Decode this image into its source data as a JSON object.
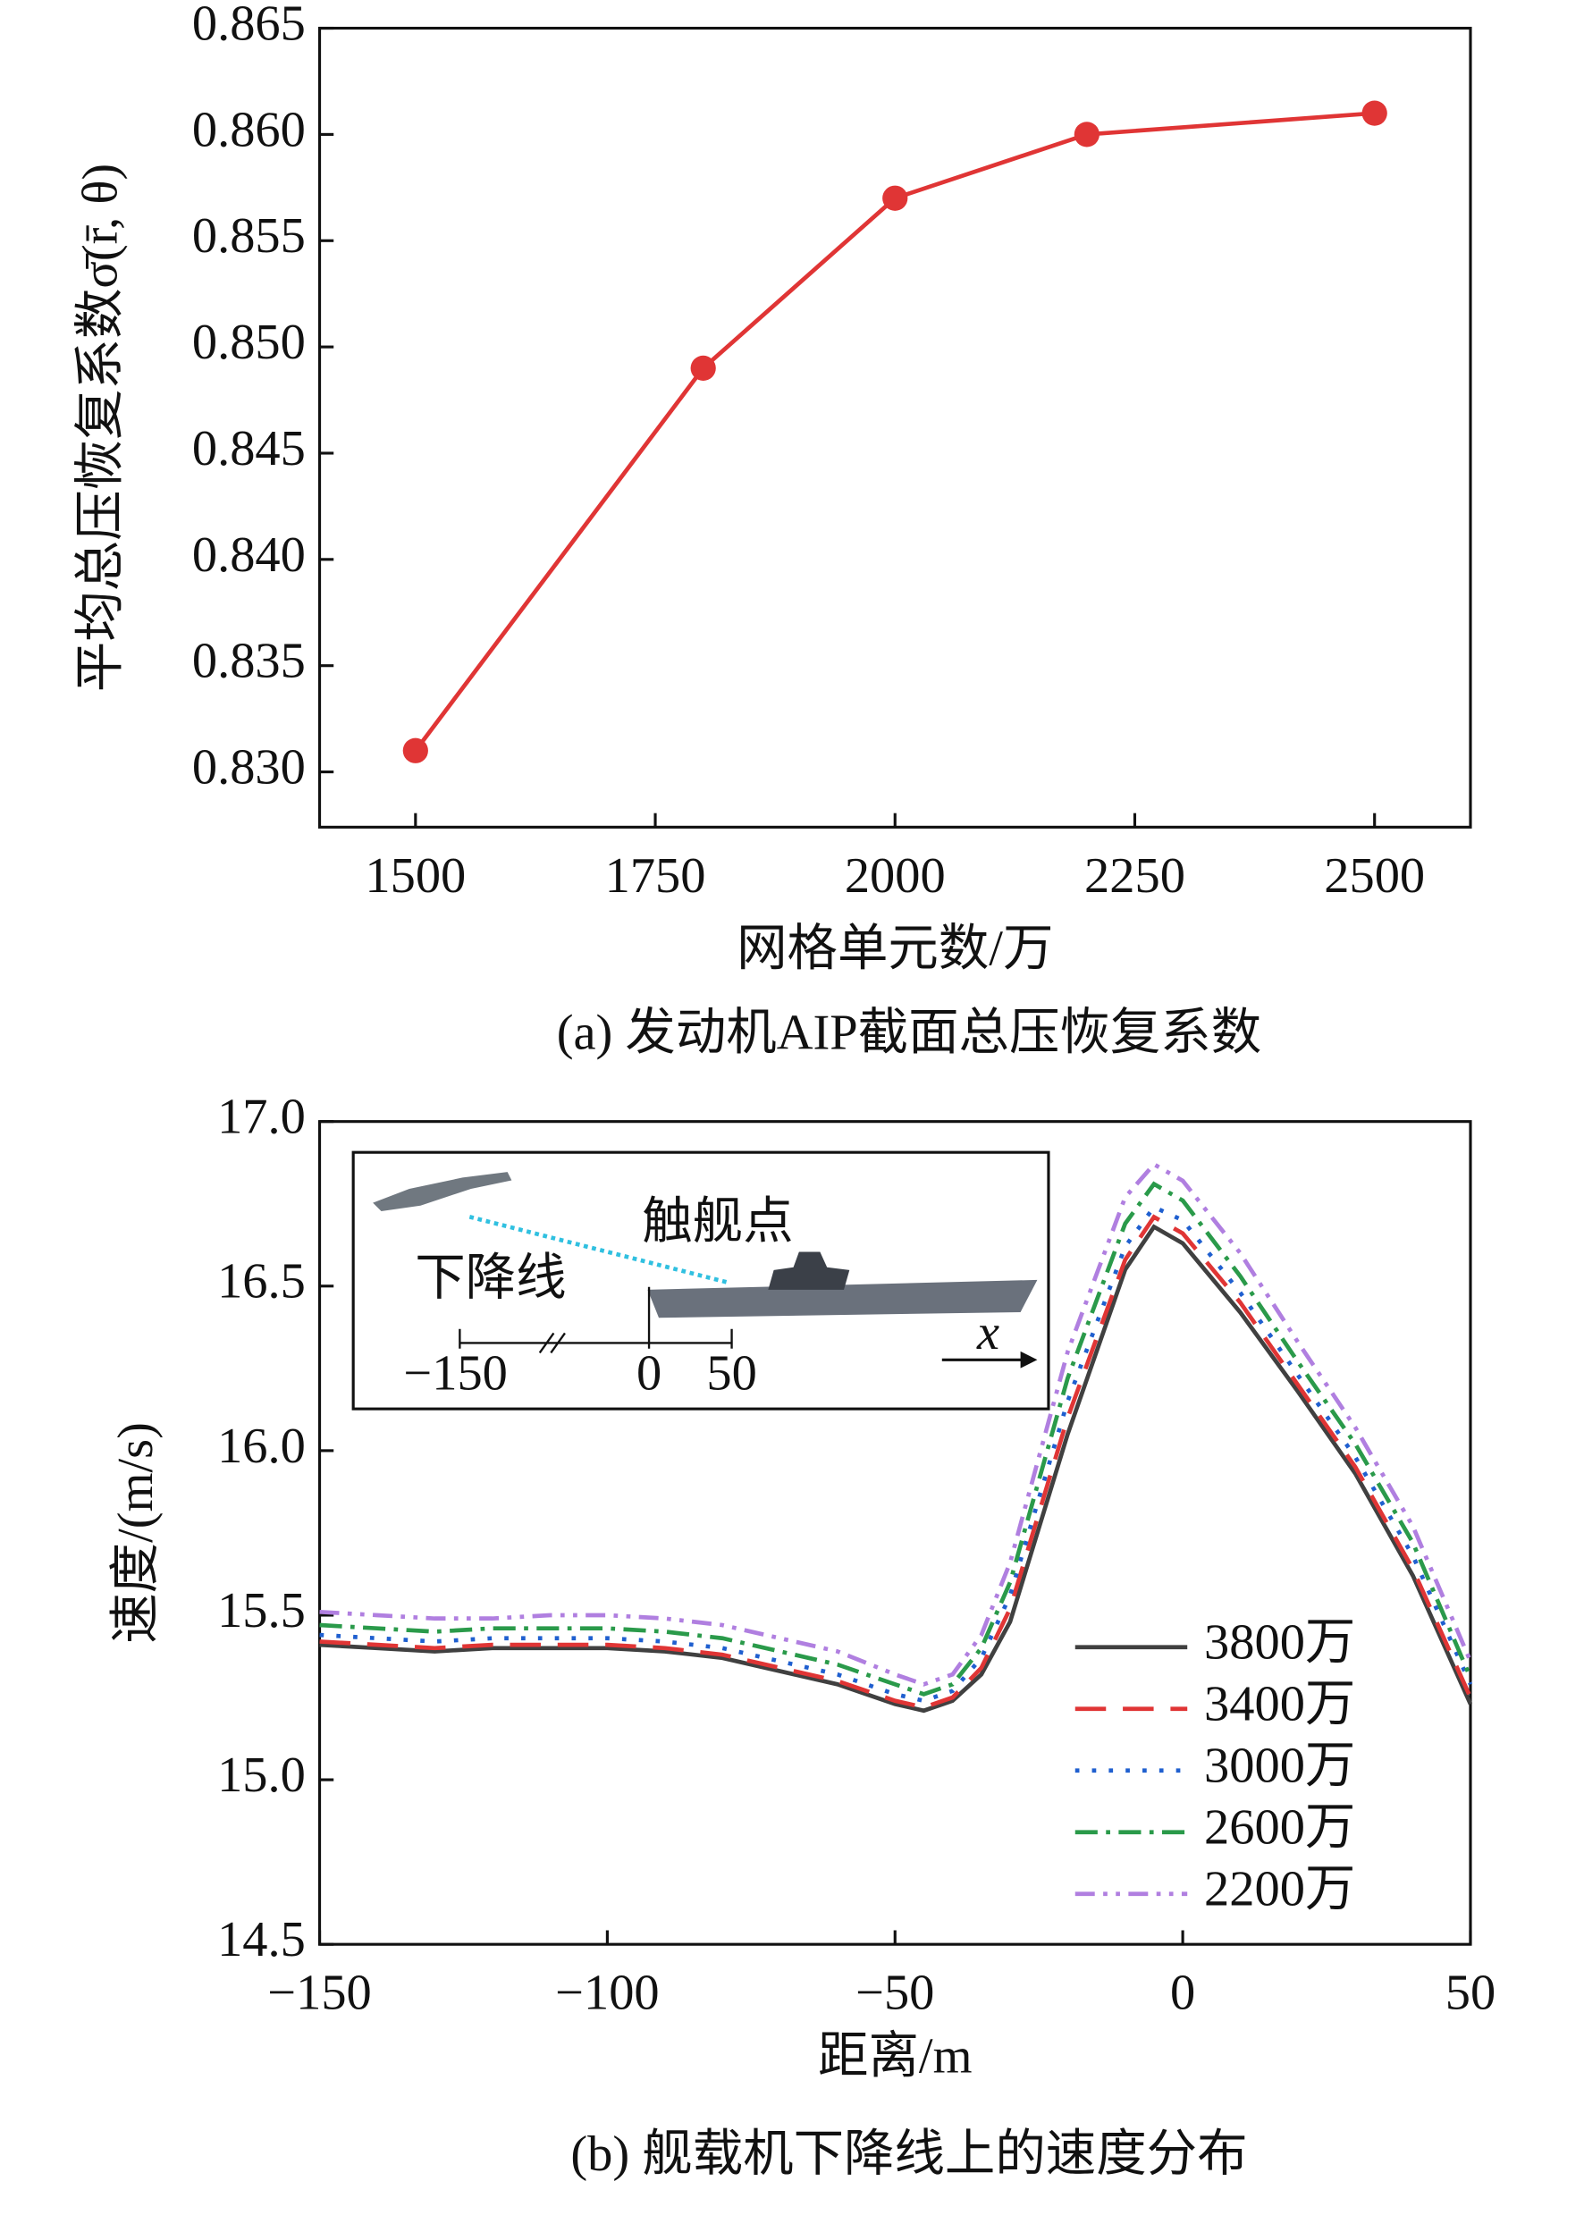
{
  "chart_data": [
    {
      "type": "line",
      "x": [
        1500,
        1800,
        2000,
        2200,
        2500
      ],
      "values": [
        0.831,
        0.849,
        0.857,
        0.86,
        0.861
      ],
      "color": "#e03535",
      "markers": true,
      "xlim": [
        1400,
        2600
      ],
      "xticks": [
        1500,
        1750,
        2000,
        2250,
        2500
      ],
      "ylim": [
        0.8274,
        0.865
      ],
      "yticks": [
        {
          "value": 0.83,
          "label": "0.830"
        },
        0.835,
        {
          "value": 0.84,
          "label": "0.840"
        },
        0.845,
        {
          "value": 0.85,
          "label": "0.850"
        },
        0.855,
        {
          "value": 0.86,
          "label": "0.860"
        },
        0.865
      ],
      "x_label": "网格单元数/万",
      "y_label": "平均总压恢复系数σ̄(r̄, θ)",
      "caption": "(a) 发动机AIP截面总压恢复系数"
    },
    {
      "type": "line",
      "x": [
        -150,
        -140,
        -130,
        -120,
        -110,
        -100,
        -90,
        -80,
        -70,
        -60,
        -50,
        -45,
        -40,
        -35,
        -30,
        -20,
        -10,
        -5,
        0,
        10,
        20,
        30,
        40,
        50
      ],
      "series": [
        {
          "name": "3800万",
          "color": "#404040",
          "dash": "solid",
          "values": [
            15.41,
            15.4,
            15.39,
            15.4,
            15.4,
            15.4,
            15.39,
            15.37,
            15.33,
            15.29,
            15.23,
            15.21,
            15.24,
            15.32,
            15.48,
            16.05,
            16.55,
            16.68,
            16.63,
            16.42,
            16.18,
            15.93,
            15.62,
            15.23
          ]
        },
        {
          "name": "3400万",
          "color": "#e03535",
          "dash": "long-dash",
          "values": [
            15.42,
            15.41,
            15.4,
            15.41,
            15.41,
            15.41,
            15.4,
            15.38,
            15.34,
            15.3,
            15.24,
            15.22,
            15.25,
            15.34,
            15.52,
            16.1,
            16.58,
            16.71,
            16.66,
            16.45,
            16.2,
            15.95,
            15.64,
            15.25
          ]
        },
        {
          "name": "3000万",
          "color": "#1f5fcf",
          "dash": "dot",
          "values": [
            15.44,
            15.43,
            15.42,
            15.43,
            15.43,
            15.43,
            15.42,
            15.4,
            15.36,
            15.32,
            15.26,
            15.24,
            15.27,
            15.37,
            15.56,
            16.15,
            16.62,
            16.74,
            16.7,
            16.48,
            16.23,
            15.98,
            15.68,
            15.29
          ]
        },
        {
          "name": "2600万",
          "color": "#2a9a4a",
          "dash": "dash-dot",
          "values": [
            15.47,
            15.46,
            15.45,
            15.46,
            15.46,
            15.46,
            15.45,
            15.43,
            15.39,
            15.35,
            15.29,
            15.26,
            15.29,
            15.4,
            15.6,
            16.22,
            16.69,
            16.81,
            16.76,
            16.53,
            16.27,
            16.02,
            15.72,
            15.31
          ]
        },
        {
          "name": "2200万",
          "color": "#b07fe0",
          "dash": "dash-dot-dot",
          "values": [
            15.51,
            15.5,
            15.49,
            15.49,
            15.5,
            15.5,
            15.49,
            15.47,
            15.43,
            15.39,
            15.32,
            15.29,
            15.32,
            15.44,
            15.66,
            16.3,
            16.77,
            16.87,
            16.82,
            16.6,
            16.33,
            16.07,
            15.77,
            15.36
          ]
        }
      ],
      "legend": "lower right",
      "xlim": [
        -150,
        50
      ],
      "xticks": [
        {
          "value": -150,
          "label": "−150"
        },
        {
          "value": -100,
          "label": "−100"
        },
        {
          "value": -50,
          "label": "−50"
        },
        0,
        50
      ],
      "ylim": [
        14.5,
        17.0
      ],
      "yticks": [
        14.5,
        {
          "value": 15,
          "label": "15.0"
        },
        15.5,
        {
          "value": 16,
          "label": "16.0"
        },
        16.5,
        {
          "value": 17,
          "label": "17.0"
        }
      ],
      "x_label": "距离/m",
      "y_label": "速度/(m/s)",
      "caption": "(b) 舰载机下降线上的速度分布",
      "inset_labels": [
        "触舰点",
        "下降线",
        "−150",
        "0",
        "50",
        "x"
      ]
    }
  ]
}
